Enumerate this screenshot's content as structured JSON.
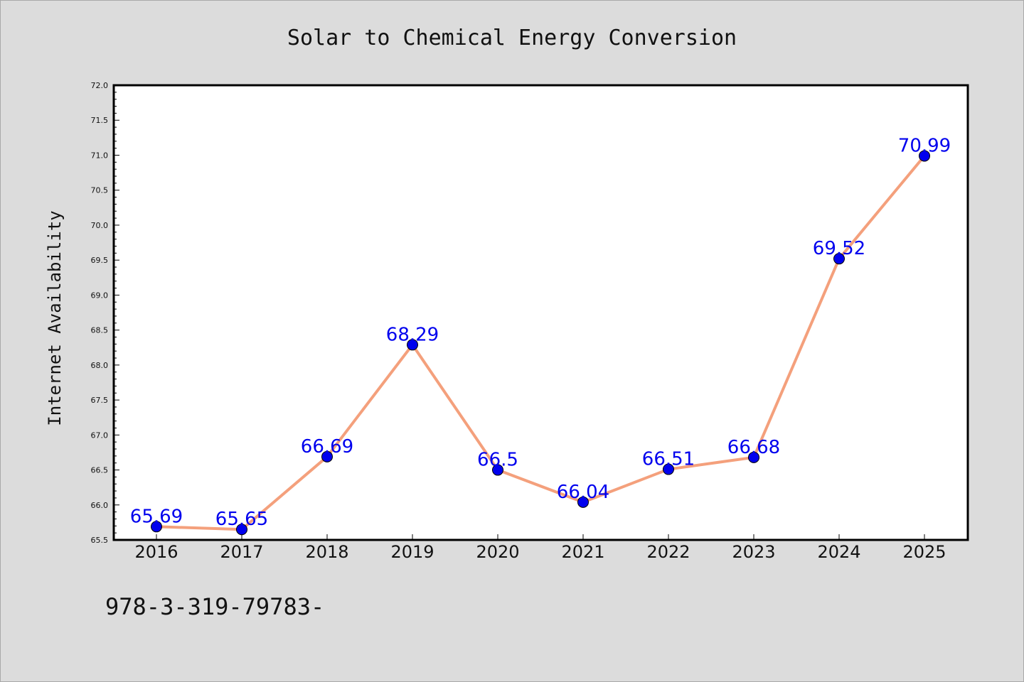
{
  "chart_data": {
    "type": "line",
    "title": "Solar to Chemical Energy Conversion",
    "xlabel": "",
    "ylabel": "Internet Availability",
    "categories": [
      "2016",
      "2017",
      "2018",
      "2019",
      "2020",
      "2021",
      "2022",
      "2023",
      "2024",
      "2025"
    ],
    "series": [
      {
        "values": [
          65.69,
          65.65,
          66.69,
          68.29,
          66.5,
          66.04,
          66.51,
          66.68,
          69.52,
          70.99
        ],
        "labels": [
          "65.69",
          "65.65",
          "66.69",
          "68.29",
          "66.5",
          "66.04",
          "66.51",
          "66.68",
          "69.52",
          "70.99"
        ],
        "line_color": "#f4a07c",
        "marker_color": "#0000ee"
      }
    ],
    "ylim": [
      65.5,
      72.0
    ],
    "yticks": [
      "65.5",
      "66.0",
      "66.5",
      "67.0",
      "67.5",
      "68.0",
      "68.5",
      "69.0",
      "69.5",
      "70.0",
      "70.5",
      "71.0",
      "71.5",
      "72.0"
    ],
    "grid": false,
    "legend": "none"
  },
  "footnote": "978-3-319-79783-",
  "colors": {
    "background": "#dcdcdc",
    "plot_area": "#ffffff",
    "line": "#f4a07c",
    "marker": "#0000ee",
    "data_label": "#0000ee"
  }
}
